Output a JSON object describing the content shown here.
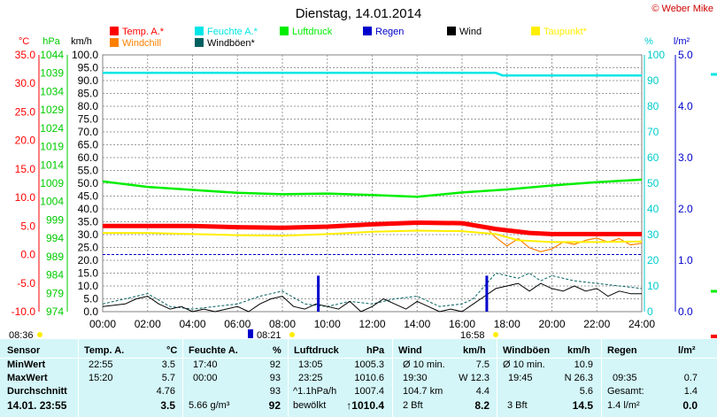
{
  "chart_data": {
    "type": "line",
    "title": "Dienstag, 14.01.2014",
    "copyright": "© Weber Mike",
    "x_ticks": [
      "00:00",
      "02:00",
      "04:00",
      "06:00",
      "08:00",
      "10:00",
      "12:00",
      "14:00",
      "16:00",
      "18:00",
      "20:00",
      "22:00",
      "24:00"
    ],
    "axes": {
      "temp": {
        "unit": "°C",
        "range": [
          -10,
          35
        ],
        "ticks": [
          "35.0",
          "30.0",
          "25.0",
          "20.0",
          "15.0",
          "10.0",
          "5.0",
          "0.0",
          "-5.0",
          "-10.0"
        ],
        "color": "#ff0000"
      },
      "pressure": {
        "unit": "hPa",
        "range": [
          974,
          1044
        ],
        "ticks": [
          "1044",
          "1039",
          "1034",
          "1029",
          "1024",
          "1019",
          "1014",
          "1009",
          "1004",
          "999",
          "994",
          "989",
          "984",
          "979",
          "974"
        ],
        "color": "#00ff00"
      },
      "speed": {
        "unit": "km/h",
        "range": [
          0,
          100
        ],
        "ticks": [
          "100.0",
          "95.0",
          "90.0",
          "85.0",
          "80.0",
          "75.0",
          "70.0",
          "65.0",
          "60.0",
          "55.0",
          "50.0",
          "45.0",
          "40.0",
          "35.0",
          "30.0",
          "25.0",
          "20.0",
          "15.0",
          "10.0",
          "5.0",
          "0.0"
        ],
        "color": "#000000"
      },
      "humidity": {
        "unit": "%",
        "range": [
          0,
          100
        ],
        "ticks": [
          "100",
          "90",
          "80",
          "70",
          "60",
          "50",
          "40",
          "30",
          "20",
          "10",
          "0"
        ],
        "color": "#00e6e6"
      },
      "rain": {
        "unit": "l/m²",
        "range": [
          0,
          5
        ],
        "ticks": [
          "5.0",
          "4.0",
          "3.0",
          "2.0",
          "1.0",
          "0.0"
        ],
        "color": "#0000cc"
      }
    },
    "legend": [
      {
        "name": "Temp. A.*",
        "color": "#ff0000"
      },
      {
        "name": "Feuchte A.*",
        "color": "#00e6e6"
      },
      {
        "name": "Luftdruck",
        "color": "#00ee00"
      },
      {
        "name": "Regen",
        "color": "#0000cc"
      },
      {
        "name": "Wind",
        "color": "#000000"
      },
      {
        "name": "Taupunkt*",
        "color": "#ffee00"
      },
      {
        "name": "Windchill",
        "color": "#ff8000"
      },
      {
        "name": "Windböen*",
        "color": "#006060"
      }
    ],
    "series": [
      {
        "name": "Temp. A.*",
        "axis": "temp",
        "color": "#ff0000",
        "x": [
          0,
          2,
          4,
          6,
          8,
          10,
          12,
          14,
          16,
          17.5,
          19,
          20,
          22,
          24
        ],
        "values": [
          5.0,
          5.0,
          5.0,
          4.8,
          4.7,
          4.9,
          5.3,
          5.6,
          5.5,
          4.5,
          3.8,
          3.6,
          3.6,
          3.6
        ]
      },
      {
        "name": "Feuchte A.*",
        "axis": "humidity",
        "color": "#00e6e6",
        "x": [
          0,
          4,
          8,
          12,
          16,
          17.5,
          17.8,
          20,
          24
        ],
        "values": [
          93,
          93,
          93,
          93,
          93,
          93,
          92,
          92,
          92
        ]
      },
      {
        "name": "Luftdruck",
        "axis": "pressure",
        "color": "#00ee00",
        "x": [
          0,
          2,
          4,
          6,
          8,
          10,
          12,
          14,
          16,
          18,
          20,
          22,
          24
        ],
        "values": [
          1009.5,
          1008.0,
          1007.2,
          1006.4,
          1006.0,
          1006.2,
          1005.8,
          1005.3,
          1006.5,
          1007.3,
          1008.4,
          1009.3,
          1010.0
        ]
      },
      {
        "name": "Taupunkt*",
        "axis": "temp",
        "color": "#ffee00",
        "x": [
          0,
          2,
          4,
          6,
          8,
          10,
          12,
          14,
          16,
          17.5,
          18.5,
          20,
          22,
          24
        ],
        "values": [
          3.8,
          3.8,
          3.6,
          3.4,
          3.3,
          3.6,
          4.0,
          4.2,
          4.1,
          3.6,
          2.5,
          2.2,
          2.2,
          2.3
        ]
      },
      {
        "name": "Windchill",
        "axis": "temp",
        "color": "#ff8000",
        "x": [
          17.2,
          17.5,
          18,
          18.5,
          19,
          19.5,
          20,
          20.5,
          21,
          21.5,
          22,
          22.5,
          23,
          23.5,
          24
        ],
        "values": [
          4.2,
          3.0,
          1.5,
          2.8,
          1.2,
          0.5,
          1.0,
          2.2,
          1.8,
          2.5,
          2.9,
          2.2,
          2.8,
          1.7,
          2.0
        ]
      },
      {
        "name": "Wind",
        "axis": "speed",
        "color": "#000000",
        "x": [
          0,
          1,
          1.5,
          2,
          2.5,
          3,
          3.5,
          4,
          4.5,
          5,
          5.5,
          6,
          6.5,
          7,
          7.5,
          8,
          8.5,
          9,
          9.5,
          10,
          10.5,
          11,
          11.5,
          12,
          12.5,
          13,
          13.5,
          14,
          14.5,
          15,
          15.5,
          16,
          16.5,
          17,
          17.5,
          18,
          18.5,
          19,
          19.5,
          20,
          20.5,
          21,
          21.5,
          22,
          22.5,
          23,
          23.5,
          24
        ],
        "values": [
          2,
          3,
          5,
          6,
          3,
          1,
          2,
          0,
          1,
          0,
          1,
          2,
          0,
          3,
          5,
          6,
          2,
          1,
          3,
          2,
          1,
          4,
          0,
          2,
          5,
          3,
          1,
          4,
          2,
          0,
          1,
          0,
          3,
          6,
          9,
          10,
          11,
          8,
          11,
          9,
          8,
          10,
          8,
          9,
          6,
          8,
          7,
          7
        ]
      },
      {
        "name": "Windböen*",
        "axis": "speed",
        "color": "#006060",
        "dashed": true,
        "x": [
          0,
          2,
          3,
          4,
          6,
          7,
          8,
          9,
          10,
          11,
          12,
          13,
          14,
          15,
          16,
          16.5,
          17,
          17.5,
          18,
          18.5,
          19,
          19.5,
          20,
          21,
          22,
          23,
          24
        ],
        "values": [
          3,
          7,
          2,
          1,
          3,
          6,
          8,
          3,
          2,
          4,
          3,
          5,
          6,
          2,
          3,
          5,
          10,
          15,
          14,
          13,
          15,
          12,
          14,
          12,
          11,
          10,
          9
        ]
      }
    ],
    "rain_bars": [
      {
        "x": 9.6,
        "value": 0.7
      },
      {
        "x": 17.1,
        "value": 0.7
      }
    ],
    "markers": [
      {
        "label": "08:36",
        "x": 0.0
      },
      {
        "label": "08:21",
        "x": 8.0
      },
      {
        "label": "16:58",
        "x": 17.0
      }
    ]
  },
  "table": {
    "headers": [
      "Sensor",
      "Temp. A.",
      "°C",
      "Feuchte A.",
      "%",
      "Luftdruck",
      "hPa",
      "Wind",
      "km/h",
      "Windböen",
      "km/h",
      "Regen",
      "l/m²"
    ],
    "rows": [
      {
        "label": "MinWert",
        "t_time": "22:55",
        "t_val": "3.5",
        "h_time": "17:40",
        "h_val": "92",
        "p_time": "13:05",
        "p_val": "1005.3",
        "w_sub": "Ø 10 min.",
        "w_val": "7.5",
        "g_sub": "Ø 10 min.",
        "g_val": "10.9",
        "r_sub": "",
        "r_val": ""
      },
      {
        "label": "MaxWert",
        "t_time": "15:20",
        "t_val": "5.7",
        "h_time": "00:00",
        "h_val": "93",
        "p_time": "23:25",
        "p_val": "1010.6",
        "w_sub": "19:30",
        "w_val": "W 12.3",
        "g_sub": "19:45",
        "g_val": "N 26.3",
        "r_sub": "09:35",
        "r_val": "0.7"
      },
      {
        "label": "Durchschnitt",
        "t_time": "",
        "t_val": "4.76",
        "h_time": "",
        "h_val": "93",
        "p_time": "^1.1hPa/h",
        "p_val": "1007.4",
        "w_sub": "104.7 km",
        "w_val": "4.4",
        "g_sub": "",
        "g_val": "5.6",
        "r_sub": "Gesamt:",
        "r_val": "1.4"
      },
      {
        "label": "14.01. 23:55",
        "t_time": "",
        "t_val": "3.5",
        "h_time": "5.66 g/m³",
        "h_val": "92",
        "p_time": "bewölkt",
        "p_val": "↑1010.4",
        "w_sub": "2 Bft",
        "w_val": "8.2",
        "g_sub": "3 Bft",
        "g_val": "14.5",
        "r_sub": "1.4 l/m²",
        "r_val": "0.0"
      }
    ]
  }
}
